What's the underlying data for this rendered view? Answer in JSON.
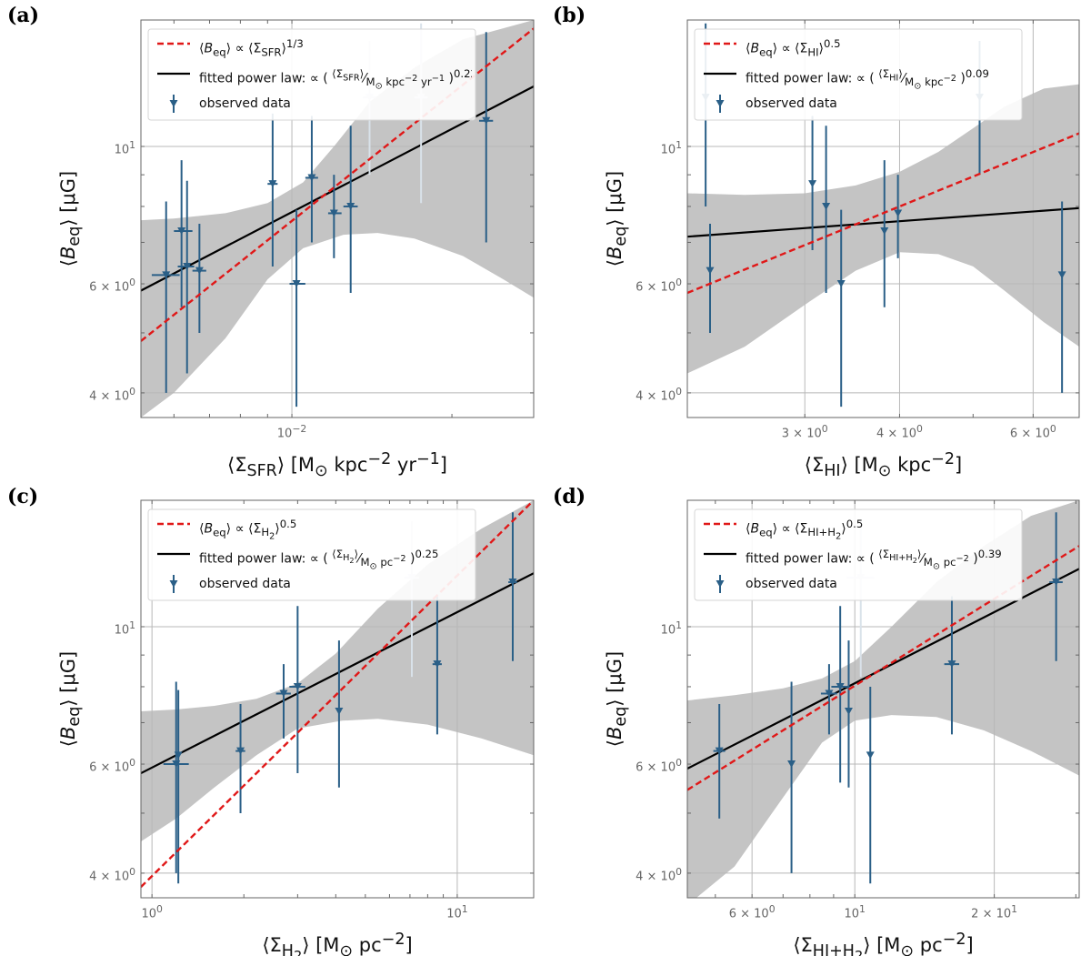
{
  "chart_data": [
    {
      "type": "scatter",
      "panel_label": "(a)",
      "xlabel_html": "⟨Σ<sub>SFR</sub>⟩ [M<sub>⊙</sub> kpc<sup>−2</sup> yr<sup>−1</sup>]",
      "ylabel_html": "⟨<i>B</i><sub>eq</sub>⟩ [μG]",
      "xscale": "log",
      "yscale": "log",
      "xlim": [
        0.0052,
        0.0285
      ],
      "ylim": [
        3.65,
        16.0
      ],
      "xticks": [
        {
          "value": 0.01,
          "label": "10<sup>−2</sup>"
        }
      ],
      "yticks": [
        {
          "value": 4,
          "label": "4 × 10<sup>0</sup>"
        },
        {
          "value": 6,
          "label": "6 × 10<sup>0</sup>"
        },
        {
          "value": 10,
          "label": "10<sup>1</sup>"
        }
      ],
      "legend": [
        {
          "kind": "dashed",
          "label_html": "⟨<i>B</i><sub>eq</sub>⟩ ∝ ⟨Σ<sub>SFR</sub>⟩<sup>1/3</sup>"
        },
        {
          "kind": "solid",
          "label_html": "fitted power law: ∝ ( <sup>⟨Σ<sub>SFR</sub>⟩</sup>⁄<sub>M<sub>⊙</sub> kpc<sup>−2</sup> yr<sup>−1</sup></sub> )<sup>0.22</sup>"
        },
        {
          "kind": "data",
          "label_html": "observed data"
        }
      ],
      "fit_line": [
        [
          0.0052,
          5.85
        ],
        [
          0.0285,
          12.5
        ]
      ],
      "ref_line": [
        [
          0.0052,
          4.85
        ],
        [
          0.0285,
          15.5
        ]
      ],
      "band_upper": [
        [
          0.0052,
          7.6
        ],
        [
          0.006,
          7.65
        ],
        [
          0.0075,
          7.8
        ],
        [
          0.009,
          8.1
        ],
        [
          0.0105,
          8.75
        ],
        [
          0.012,
          10.0
        ],
        [
          0.014,
          11.8
        ],
        [
          0.017,
          13.4
        ],
        [
          0.021,
          14.9
        ],
        [
          0.0285,
          16.0
        ]
      ],
      "band_lower": [
        [
          0.0052,
          3.65
        ],
        [
          0.006,
          4.0
        ],
        [
          0.0075,
          4.9
        ],
        [
          0.009,
          6.1
        ],
        [
          0.0105,
          6.85
        ],
        [
          0.0125,
          7.2
        ],
        [
          0.0145,
          7.25
        ],
        [
          0.017,
          7.1
        ],
        [
          0.021,
          6.65
        ],
        [
          0.025,
          6.1
        ],
        [
          0.0285,
          5.7
        ]
      ],
      "points": [
        {
          "x": 0.0058,
          "y": 6.2,
          "xerr": [
            0.00545,
            0.00615
          ],
          "yerr": [
            4.0,
            8.15
          ],
          "faint": false
        },
        {
          "x": 0.0062,
          "y": 7.3,
          "xerr": [
            0.006,
            0.0065
          ],
          "yerr": [
            5.5,
            9.5
          ],
          "faint": false
        },
        {
          "x": 0.00635,
          "y": 6.4,
          "xerr": [
            0.0061,
            0.00655
          ],
          "yerr": [
            4.3,
            8.8
          ],
          "faint": false
        },
        {
          "x": 0.0067,
          "y": 6.3,
          "xerr": [
            0.0065,
            0.0069
          ],
          "yerr": [
            5.0,
            7.5
          ],
          "faint": false
        },
        {
          "x": 0.0092,
          "y": 8.7,
          "xerr": [
            0.009,
            0.0094
          ],
          "yerr": [
            6.4,
            11.3
          ],
          "faint": false
        },
        {
          "x": 0.0102,
          "y": 6.0,
          "xerr": [
            0.0099,
            0.0106
          ],
          "yerr": [
            3.8,
            7.9
          ],
          "faint": false
        },
        {
          "x": 0.0109,
          "y": 8.9,
          "xerr": [
            0.0106,
            0.0112
          ],
          "yerr": [
            7.0,
            11.2
          ],
          "faint": false
        },
        {
          "x": 0.012,
          "y": 7.8,
          "xerr": [
            0.0117,
            0.0124
          ],
          "yerr": [
            6.6,
            9.0
          ],
          "faint": false
        },
        {
          "x": 0.0129,
          "y": 8.0,
          "xerr": [
            0.0125,
            0.0133
          ],
          "yerr": [
            5.8,
            10.8
          ],
          "faint": false
        },
        {
          "x": 0.014,
          "y": 12.0,
          "xerr": [
            0.0136,
            0.0144
          ],
          "yerr": [
            9.0,
            14.8
          ],
          "faint": true
        },
        {
          "x": 0.0175,
          "y": 12.0,
          "xerr": [
            0.017,
            0.018
          ],
          "yerr": [
            8.1,
            15.8
          ],
          "faint": true
        },
        {
          "x": 0.0232,
          "y": 11.0,
          "xerr": [
            0.0225,
            0.0239
          ],
          "yerr": [
            7.0,
            15.3
          ],
          "faint": false
        }
      ]
    },
    {
      "type": "scatter",
      "panel_label": "(b)",
      "xlabel_html": "⟨Σ<sub>HI</sub>⟩ [M<sub>⊙</sub> kpc<sup>−2</sup>]",
      "ylabel_html": "⟨<i>B</i><sub>eq</sub>⟩ [μG]",
      "xscale": "log",
      "yscale": "log",
      "xlim": [
        2.1,
        6.9
      ],
      "ylim": [
        3.65,
        16.0
      ],
      "xticks": [
        {
          "value": 3,
          "label": "3 × 10<sup>0</sup>"
        },
        {
          "value": 4,
          "label": "4 × 10<sup>0</sup>"
        },
        {
          "value": 6,
          "label": "6 × 10<sup>0</sup>"
        }
      ],
      "yticks": [
        {
          "value": 4,
          "label": "4 × 10<sup>0</sup>"
        },
        {
          "value": 6,
          "label": "6 × 10<sup>0</sup>"
        },
        {
          "value": 10,
          "label": "10<sup>1</sup>"
        }
      ],
      "legend": [
        {
          "kind": "dashed",
          "label_html": "⟨<i>B</i><sub>eq</sub>⟩ ∝ ⟨Σ<sub>HI</sub>⟩<sup>0.5</sup>"
        },
        {
          "kind": "solid",
          "label_html": "fitted power law: ∝ ( <sup>⟨Σ<sub>HI</sub>⟩</sup>⁄<sub>M<sub>⊙</sub> kpc<sup>−2</sup></sub> )<sup>0.09</sup>"
        },
        {
          "kind": "data",
          "label_html": "observed data"
        }
      ],
      "fit_line": [
        [
          2.1,
          7.15
        ],
        [
          6.9,
          7.95
        ]
      ],
      "ref_line": [
        [
          2.1,
          5.8
        ],
        [
          6.9,
          10.5
        ]
      ],
      "band_upper": [
        [
          2.1,
          8.4
        ],
        [
          2.5,
          8.35
        ],
        [
          3.0,
          8.4
        ],
        [
          3.5,
          8.65
        ],
        [
          4.0,
          9.1
        ],
        [
          4.5,
          9.8
        ],
        [
          5.0,
          10.7
        ],
        [
          5.5,
          11.6
        ],
        [
          6.2,
          12.4
        ],
        [
          6.9,
          12.6
        ]
      ],
      "band_lower": [
        [
          2.1,
          4.3
        ],
        [
          2.5,
          4.75
        ],
        [
          3.0,
          5.55
        ],
        [
          3.5,
          6.3
        ],
        [
          4.0,
          6.75
        ],
        [
          4.5,
          6.7
        ],
        [
          5.0,
          6.4
        ],
        [
          5.5,
          5.85
        ],
        [
          6.2,
          5.2
        ],
        [
          6.9,
          4.75
        ]
      ],
      "points": [
        {
          "x": 2.22,
          "y": 12.0,
          "xerr": [
            2.22,
            2.22
          ],
          "yerr": [
            8.0,
            15.8
          ],
          "faint": false
        },
        {
          "x": 2.25,
          "y": 6.3,
          "xerr": [
            2.25,
            2.25
          ],
          "yerr": [
            5.0,
            7.5
          ],
          "faint": false
        },
        {
          "x": 3.07,
          "y": 8.7,
          "xerr": [
            3.07,
            3.07
          ],
          "yerr": [
            6.8,
            11.2
          ],
          "faint": false
        },
        {
          "x": 3.2,
          "y": 8.0,
          "xerr": [
            3.2,
            3.2
          ],
          "yerr": [
            5.8,
            10.8
          ],
          "faint": false
        },
        {
          "x": 3.35,
          "y": 6.0,
          "xerr": [
            3.35,
            3.35
          ],
          "yerr": [
            3.8,
            7.9
          ],
          "faint": false
        },
        {
          "x": 3.82,
          "y": 7.3,
          "xerr": [
            3.82,
            3.82
          ],
          "yerr": [
            5.5,
            9.5
          ],
          "faint": false
        },
        {
          "x": 3.98,
          "y": 7.8,
          "xerr": [
            3.98,
            3.98
          ],
          "yerr": [
            6.6,
            9.0
          ],
          "faint": false
        },
        {
          "x": 5.1,
          "y": 12.0,
          "xerr": [
            5.1,
            5.1
          ],
          "yerr": [
            9.0,
            14.8
          ],
          "faint": false
        },
        {
          "x": 6.55,
          "y": 6.2,
          "xerr": [
            6.55,
            6.55
          ],
          "yerr": [
            4.0,
            8.15
          ],
          "faint": false
        }
      ]
    },
    {
      "type": "scatter",
      "panel_label": "(c)",
      "xlabel_html": "⟨Σ<sub>H<sub>2</sub></sub>⟩ [M<sub>⊙</sub> pc<sup>−2</sup>]",
      "ylabel_html": "⟨<i>B</i><sub>eq</sub>⟩ [μG]",
      "xscale": "log",
      "yscale": "log",
      "xlim": [
        0.92,
        17.8
      ],
      "ylim": [
        3.65,
        16.0
      ],
      "xticks": [
        {
          "value": 1,
          "label": "10<sup>0</sup>"
        },
        {
          "value": 10,
          "label": "10<sup>1</sup>"
        }
      ],
      "yticks": [
        {
          "value": 4,
          "label": "4 × 10<sup>0</sup>"
        },
        {
          "value": 6,
          "label": "6 × 10<sup>0</sup>"
        },
        {
          "value": 10,
          "label": "10<sup>1</sup>"
        }
      ],
      "legend": [
        {
          "kind": "dashed",
          "label_html": "⟨<i>B</i><sub>eq</sub>⟩ ∝ ⟨Σ<sub>H<sub>2</sub></sub>⟩<sup>0.5</sup>"
        },
        {
          "kind": "solid",
          "label_html": "fitted power law: ∝ ( <sup>⟨Σ<sub>H<sub>2</sub></sub>⟩</sup>⁄<sub>M<sub>⊙</sub> pc<sup>−2</sup></sub> )<sup>0.25</sup>"
        },
        {
          "kind": "data",
          "label_html": "observed data"
        }
      ],
      "fit_line": [
        [
          0.92,
          5.8
        ],
        [
          17.8,
          12.2
        ]
      ],
      "ref_line": [
        [
          0.92,
          3.8
        ],
        [
          17.8,
          16.0
        ]
      ],
      "band_upper": [
        [
          0.92,
          7.3
        ],
        [
          1.2,
          7.35
        ],
        [
          1.6,
          7.45
        ],
        [
          2.2,
          7.65
        ],
        [
          3.0,
          8.1
        ],
        [
          4.0,
          9.05
        ],
        [
          5.5,
          10.7
        ],
        [
          8.0,
          12.6
        ],
        [
          12.0,
          14.4
        ],
        [
          17.8,
          16.0
        ]
      ],
      "band_lower": [
        [
          0.92,
          4.5
        ],
        [
          1.2,
          4.9
        ],
        [
          1.6,
          5.5
        ],
        [
          2.2,
          6.2
        ],
        [
          3.0,
          6.85
        ],
        [
          4.2,
          7.05
        ],
        [
          5.5,
          7.1
        ],
        [
          8.0,
          6.95
        ],
        [
          12.0,
          6.6
        ],
        [
          17.8,
          6.2
        ]
      ],
      "points": [
        {
          "x": 1.2,
          "y": 6.0,
          "xerr": [
            1.09,
            1.32
          ],
          "yerr": [
            4.0,
            8.15
          ],
          "faint": false
        },
        {
          "x": 1.22,
          "y": 6.2,
          "xerr": [
            1.22,
            1.22
          ],
          "yerr": [
            3.85,
            7.9
          ],
          "faint": false
        },
        {
          "x": 1.95,
          "y": 6.3,
          "xerr": [
            1.88,
            2.02
          ],
          "yerr": [
            5.0,
            7.5
          ],
          "faint": false
        },
        {
          "x": 2.7,
          "y": 7.8,
          "xerr": [
            2.55,
            2.85
          ],
          "yerr": [
            6.6,
            8.7
          ],
          "faint": false
        },
        {
          "x": 3.0,
          "y": 8.0,
          "xerr": [
            2.82,
            3.18
          ],
          "yerr": [
            5.8,
            10.8
          ],
          "faint": false
        },
        {
          "x": 4.1,
          "y": 7.3,
          "xerr": [
            4.1,
            4.1
          ],
          "yerr": [
            5.5,
            9.5
          ],
          "faint": false
        },
        {
          "x": 7.1,
          "y": 12.0,
          "xerr": [
            6.7,
            7.5
          ],
          "yerr": [
            8.3,
            14.8
          ],
          "faint": true
        },
        {
          "x": 8.6,
          "y": 8.7,
          "xerr": [
            8.3,
            8.9
          ],
          "yerr": [
            6.7,
            11.2
          ],
          "faint": false
        },
        {
          "x": 15.2,
          "y": 11.8,
          "xerr": [
            14.7,
            15.7
          ],
          "yerr": [
            8.8,
            15.3
          ],
          "faint": false
        }
      ]
    },
    {
      "type": "scatter",
      "panel_label": "(d)",
      "xlabel_html": "⟨Σ<sub>HI+H<sub>2</sub></sub>⟩ [M<sub>⊙</sub> pc<sup>−2</sup>]",
      "ylabel_html": "⟨<i>B</i><sub>eq</sub>⟩ [μG]",
      "xscale": "log",
      "yscale": "log",
      "xlim": [
        4.35,
        30.5
      ],
      "ylim": [
        3.65,
        16.0
      ],
      "xticks": [
        {
          "value": 6,
          "label": "6 × 10<sup>0</sup>"
        },
        {
          "value": 10,
          "label": "10<sup>1</sup>"
        },
        {
          "value": 20,
          "label": "2 × 10<sup>1</sup>"
        }
      ],
      "yticks": [
        {
          "value": 4,
          "label": "4 × 10<sup>0</sup>"
        },
        {
          "value": 6,
          "label": "6 × 10<sup>0</sup>"
        },
        {
          "value": 10,
          "label": "10<sup>1</sup>"
        }
      ],
      "legend": [
        {
          "kind": "dashed",
          "label_html": "⟨<i>B</i><sub>eq</sub>⟩ ∝ ⟨Σ<sub>HI+H<sub>2</sub></sub>⟩<sup>0.5</sup>"
        },
        {
          "kind": "solid",
          "label_html": "fitted power law: ∝ ( <sup>⟨Σ<sub>HI+H<sub>2</sub></sub>⟩</sup>⁄<sub>M<sub>⊙</sub> pc<sup>−2</sup></sub> )<sup>0.39</sup>"
        },
        {
          "kind": "data",
          "label_html": "observed data"
        }
      ],
      "fit_line": [
        [
          4.35,
          5.9
        ],
        [
          30.5,
          12.4
        ]
      ],
      "ref_line": [
        [
          4.35,
          5.45
        ],
        [
          30.5,
          13.5
        ]
      ],
      "band_upper": [
        [
          4.35,
          7.6
        ],
        [
          5.5,
          7.75
        ],
        [
          7.0,
          7.95
        ],
        [
          8.5,
          8.25
        ],
        [
          10.0,
          8.8
        ],
        [
          12.0,
          10.0
        ],
        [
          15.0,
          11.8
        ],
        [
          19.0,
          13.5
        ],
        [
          24.0,
          15.1
        ],
        [
          30.5,
          16.0
        ]
      ],
      "band_lower": [
        [
          4.35,
          3.55
        ],
        [
          5.5,
          4.1
        ],
        [
          7.0,
          5.3
        ],
        [
          8.5,
          6.5
        ],
        [
          10.0,
          7.05
        ],
        [
          12.0,
          7.2
        ],
        [
          15.0,
          7.15
        ],
        [
          19.0,
          6.8
        ],
        [
          24.0,
          6.3
        ],
        [
          30.5,
          5.75
        ]
      ],
      "points": [
        {
          "x": 5.1,
          "y": 6.3,
          "xerr": [
            4.95,
            5.25
          ],
          "yerr": [
            4.9,
            7.5
          ],
          "faint": false
        },
        {
          "x": 7.3,
          "y": 6.0,
          "xerr": [
            7.3,
            7.3
          ],
          "yerr": [
            4.0,
            8.15
          ],
          "faint": false
        },
        {
          "x": 8.8,
          "y": 7.8,
          "xerr": [
            8.45,
            9.15
          ],
          "yerr": [
            6.7,
            8.7
          ],
          "faint": false
        },
        {
          "x": 9.3,
          "y": 8.0,
          "xerr": [
            8.9,
            9.7
          ],
          "yerr": [
            5.6,
            10.8
          ],
          "faint": false
        },
        {
          "x": 9.7,
          "y": 7.3,
          "xerr": [
            9.7,
            9.7
          ],
          "yerr": [
            5.5,
            9.5
          ],
          "faint": false
        },
        {
          "x": 10.3,
          "y": 12.0,
          "xerr": [
            9.6,
            11.0
          ],
          "yerr": [
            8.3,
            14.8
          ],
          "faint": true
        },
        {
          "x": 10.8,
          "y": 6.2,
          "xerr": [
            10.8,
            10.8
          ],
          "yerr": [
            3.85,
            8.0
          ],
          "faint": false
        },
        {
          "x": 16.2,
          "y": 8.7,
          "xerr": [
            15.6,
            16.8
          ],
          "yerr": [
            6.7,
            11.2
          ],
          "faint": false
        },
        {
          "x": 27.2,
          "y": 11.8,
          "xerr": [
            26.3,
            28.1
          ],
          "yerr": [
            8.8,
            15.3
          ],
          "faint": false
        }
      ]
    }
  ],
  "colors": {
    "band": "#c4c4c4",
    "fit_line": "#000000",
    "ref_line": "#e01818",
    "data": "#2a5f87",
    "data_faint": "#d9e2ea",
    "grid": "#b8b8b8",
    "tick_text": "#666666"
  }
}
